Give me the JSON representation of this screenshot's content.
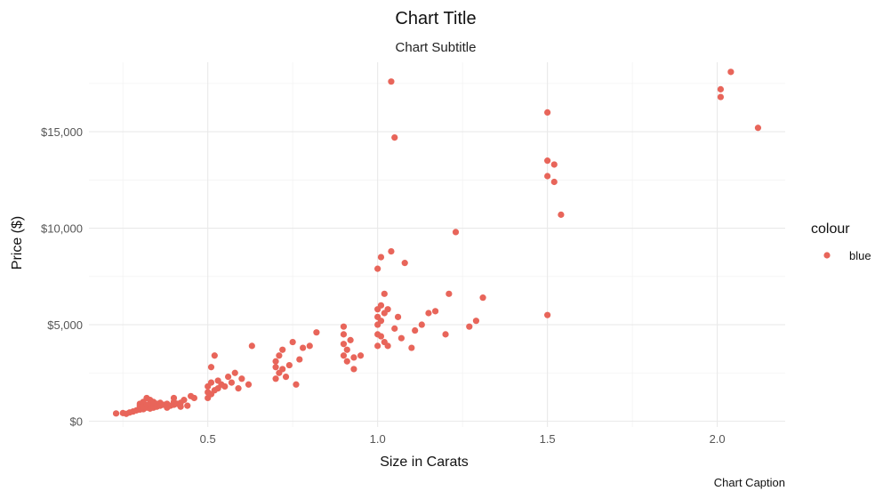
{
  "chart_data": {
    "type": "scatter",
    "title": "Chart Title",
    "subtitle": "Chart Subtitle",
    "caption": "Chart Caption",
    "xlabel": "Size in Carats",
    "ylabel": "Price ($)",
    "xlim": [
      0.15,
      2.2
    ],
    "ylim": [
      -300,
      18600
    ],
    "x_ticks": [
      0.5,
      1.0,
      1.5,
      2.0
    ],
    "x_tick_labels": [
      "0.5",
      "1.0",
      "1.5",
      "2.0"
    ],
    "y_ticks": [
      0,
      5000,
      10000,
      15000
    ],
    "y_tick_labels": [
      "$0",
      "$5,000",
      "$10,000",
      "$15,000"
    ],
    "grid": true,
    "legend": {
      "title": "colour",
      "position": "right",
      "entries": [
        {
          "label": "blue",
          "color": "#E8655A"
        }
      ]
    },
    "series": [
      {
        "name": "blue",
        "color": "#E8655A",
        "points": [
          [
            0.23,
            400
          ],
          [
            0.25,
            420
          ],
          [
            0.26,
            380
          ],
          [
            0.27,
            450
          ],
          [
            0.28,
            500
          ],
          [
            0.29,
            560
          ],
          [
            0.3,
            600
          ],
          [
            0.3,
            700
          ],
          [
            0.3,
            800
          ],
          [
            0.3,
            900
          ],
          [
            0.31,
            620
          ],
          [
            0.31,
            750
          ],
          [
            0.31,
            1000
          ],
          [
            0.32,
            700
          ],
          [
            0.32,
            850
          ],
          [
            0.32,
            1200
          ],
          [
            0.33,
            650
          ],
          [
            0.33,
            900
          ],
          [
            0.33,
            1100
          ],
          [
            0.34,
            700
          ],
          [
            0.34,
            800
          ],
          [
            0.34,
            1000
          ],
          [
            0.35,
            750
          ],
          [
            0.35,
            900
          ],
          [
            0.36,
            800
          ],
          [
            0.36,
            950
          ],
          [
            0.37,
            850
          ],
          [
            0.38,
            700
          ],
          [
            0.38,
            900
          ],
          [
            0.39,
            800
          ],
          [
            0.4,
            850
          ],
          [
            0.4,
            1000
          ],
          [
            0.4,
            1200
          ],
          [
            0.41,
            900
          ],
          [
            0.42,
            750
          ],
          [
            0.42,
            950
          ],
          [
            0.43,
            1100
          ],
          [
            0.44,
            800
          ],
          [
            0.45,
            1300
          ],
          [
            0.46,
            1200
          ],
          [
            0.5,
            1200
          ],
          [
            0.5,
            1500
          ],
          [
            0.5,
            1800
          ],
          [
            0.51,
            1400
          ],
          [
            0.51,
            2000
          ],
          [
            0.51,
            2800
          ],
          [
            0.52,
            1600
          ],
          [
            0.52,
            3400
          ],
          [
            0.53,
            1700
          ],
          [
            0.53,
            2100
          ],
          [
            0.54,
            1900
          ],
          [
            0.55,
            1800
          ],
          [
            0.56,
            2300
          ],
          [
            0.57,
            2000
          ],
          [
            0.58,
            2500
          ],
          [
            0.59,
            1700
          ],
          [
            0.6,
            2200
          ],
          [
            0.62,
            1900
          ],
          [
            0.63,
            3900
          ],
          [
            0.7,
            2200
          ],
          [
            0.7,
            2800
          ],
          [
            0.7,
            3100
          ],
          [
            0.71,
            2500
          ],
          [
            0.71,
            3400
          ],
          [
            0.72,
            2700
          ],
          [
            0.72,
            3700
          ],
          [
            0.73,
            2300
          ],
          [
            0.74,
            2900
          ],
          [
            0.75,
            4100
          ],
          [
            0.76,
            1900
          ],
          [
            0.77,
            3200
          ],
          [
            0.78,
            3800
          ],
          [
            0.8,
            3900
          ],
          [
            0.82,
            4600
          ],
          [
            0.9,
            3400
          ],
          [
            0.9,
            4000
          ],
          [
            0.9,
            4500
          ],
          [
            0.9,
            4900
          ],
          [
            0.91,
            3100
          ],
          [
            0.91,
            3700
          ],
          [
            0.92,
            4200
          ],
          [
            0.93,
            3300
          ],
          [
            0.93,
            2700
          ],
          [
            0.95,
            3400
          ],
          [
            1.0,
            3900
          ],
          [
            1.0,
            4500
          ],
          [
            1.0,
            5000
          ],
          [
            1.0,
            5400
          ],
          [
            1.0,
            5800
          ],
          [
            1.0,
            7900
          ],
          [
            1.01,
            4400
          ],
          [
            1.01,
            5200
          ],
          [
            1.01,
            6000
          ],
          [
            1.01,
            8500
          ],
          [
            1.02,
            4100
          ],
          [
            1.02,
            5600
          ],
          [
            1.02,
            6600
          ],
          [
            1.03,
            3900
          ],
          [
            1.03,
            5800
          ],
          [
            1.04,
            8800
          ],
          [
            1.05,
            4800
          ],
          [
            1.06,
            5400
          ],
          [
            1.07,
            4300
          ],
          [
            1.08,
            8200
          ],
          [
            1.1,
            3800
          ],
          [
            1.11,
            4700
          ],
          [
            1.13,
            5000
          ],
          [
            1.15,
            5600
          ],
          [
            1.17,
            5700
          ],
          [
            1.2,
            4500
          ],
          [
            1.21,
            6600
          ],
          [
            1.23,
            9800
          ],
          [
            1.27,
            4900
          ],
          [
            1.29,
            5200
          ],
          [
            1.31,
            6400
          ],
          [
            1.04,
            17600
          ],
          [
            1.05,
            14700
          ],
          [
            1.5,
            5500
          ],
          [
            1.5,
            12700
          ],
          [
            1.5,
            13500
          ],
          [
            1.5,
            16000
          ],
          [
            1.52,
            12400
          ],
          [
            1.52,
            13300
          ],
          [
            1.54,
            10700
          ],
          [
            2.01,
            16800
          ],
          [
            2.01,
            17200
          ],
          [
            2.04,
            18100
          ],
          [
            2.12,
            15200
          ]
        ]
      }
    ]
  }
}
